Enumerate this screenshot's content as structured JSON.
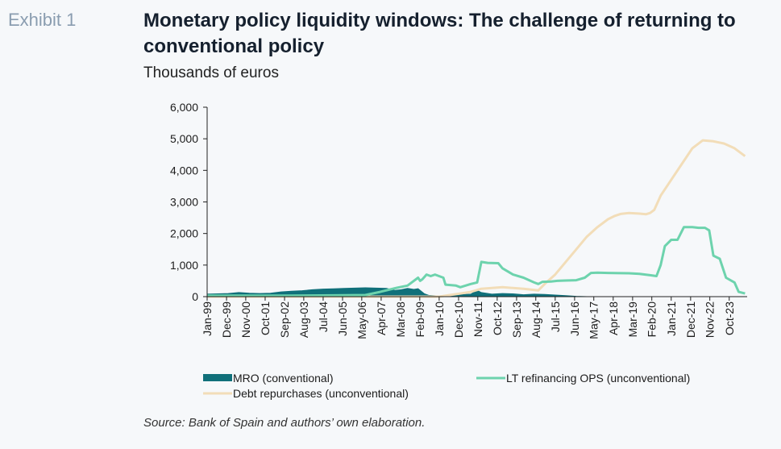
{
  "header": {
    "exhibit": "Exhibit 1",
    "title": "Monetary policy liquidity windows: The challenge of returning to conventional policy",
    "subtitle": "Thousands of euros"
  },
  "source": "Source: Bank of Spain and authors’ own elaboration.",
  "colors": {
    "mro": "#10707a",
    "lt_refinancing": "#6dd3ad",
    "debt_repurchases": "#f2ddb8",
    "axis": "#222222"
  },
  "chart_data": {
    "type": "line",
    "ylim": [
      0,
      6000
    ],
    "xlim": [
      1999.0,
      2024.6
    ],
    "y_ticks": [
      0,
      1000,
      2000,
      3000,
      4000,
      5000,
      6000
    ],
    "y_tick_labels": [
      "0",
      "1,000",
      "2,000",
      "3,000",
      "4,000",
      "5,000",
      "6,000"
    ],
    "x_tick_labels": [
      "Jan-99",
      "Dec-99",
      "Nov-00",
      "Oct-01",
      "Sep-02",
      "Aug-03",
      "Jul-04",
      "Jun-05",
      "May-06",
      "Apr-07",
      "Mar-08",
      "Feb-09",
      "Jan-10",
      "Dec-10",
      "Nov-11",
      "Oct-12",
      "Sep-13",
      "Aug-14",
      "Jul-15",
      "Jun-16",
      "May-17",
      "Apr-18",
      "Mar-19",
      "Feb-20",
      "Jan-21",
      "Dec-21",
      "Nov-22",
      "Oct-23"
    ],
    "x_tick_values": [
      1999.0,
      1999.92,
      2000.83,
      2001.75,
      2002.67,
      2003.58,
      2004.5,
      2005.42,
      2006.33,
      2007.25,
      2008.17,
      2009.08,
      2010.0,
      2010.92,
      2011.83,
      2012.75,
      2013.67,
      2014.58,
      2015.5,
      2016.42,
      2017.33,
      2018.25,
      2019.17,
      2020.08,
      2021.0,
      2021.92,
      2022.83,
      2023.75
    ],
    "series": [
      {
        "name": "MRO (conventional)",
        "style": "area",
        "x": [
          1999.0,
          1999.5,
          2000.0,
          2000.5,
          2001.0,
          2001.5,
          2002.0,
          2002.5,
          2003.0,
          2003.5,
          2004.0,
          2004.5,
          2005.0,
          2005.5,
          2006.0,
          2006.5,
          2007.0,
          2007.5,
          2007.9,
          2008.2,
          2008.5,
          2008.8,
          2009.0,
          2009.3,
          2009.5,
          2010.0,
          2010.5,
          2011.0,
          2011.5,
          2011.8,
          2012.0,
          2012.5,
          2013.0,
          2013.5,
          2014.0,
          2014.5,
          2015.0,
          2015.5,
          2016.0,
          2016.5,
          2017.0
        ],
        "y": [
          80,
          90,
          100,
          130,
          110,
          100,
          110,
          150,
          170,
          190,
          220,
          240,
          250,
          260,
          270,
          280,
          270,
          260,
          200,
          220,
          260,
          230,
          250,
          90,
          40,
          20,
          30,
          60,
          80,
          200,
          130,
          80,
          100,
          90,
          60,
          80,
          70,
          50,
          30,
          10,
          0
        ]
      },
      {
        "name": "LT refinancing OPS (unconventional)",
        "style": "line",
        "x": [
          1999.0,
          2003.0,
          2005.0,
          2006.5,
          2007.2,
          2008.0,
          2008.5,
          2009.0,
          2009.1,
          2009.2,
          2009.4,
          2009.6,
          2009.8,
          2010.2,
          2010.3,
          2010.8,
          2011.0,
          2011.5,
          2011.8,
          2012.0,
          2012.3,
          2012.8,
          2013.0,
          2013.5,
          2014.0,
          2014.5,
          2014.7,
          2014.9,
          2015.3,
          2015.6,
          2016.0,
          2016.5,
          2016.9,
          2017.2,
          2017.5,
          2018.0,
          2019.0,
          2019.5,
          2020.0,
          2020.3,
          2020.5,
          2020.7,
          2021.0,
          2021.3,
          2021.6,
          2022.0,
          2022.3,
          2022.6,
          2022.8,
          2023.0,
          2023.3,
          2023.6,
          2024.0,
          2024.2,
          2024.5
        ],
        "y": [
          30,
          30,
          40,
          50,
          150,
          280,
          350,
          600,
          500,
          550,
          700,
          650,
          700,
          600,
          380,
          350,
          300,
          400,
          450,
          1100,
          1070,
          1060,
          900,
          700,
          600,
          450,
          400,
          470,
          480,
          500,
          510,
          520,
          600,
          750,
          760,
          750,
          740,
          720,
          680,
          650,
          1000,
          1600,
          1800,
          1800,
          2200,
          2200,
          2180,
          2180,
          2100,
          1300,
          1200,
          600,
          450,
          150,
          100
        ]
      },
      {
        "name": "Debt repurchases (unconventional)",
        "style": "line",
        "x": [
          1999.0,
          2009.5,
          2010.0,
          2010.5,
          2011.0,
          2011.5,
          2012.0,
          2013.0,
          2014.0,
          2014.7,
          2015.0,
          2015.5,
          2016.0,
          2016.5,
          2017.0,
          2017.5,
          2018.0,
          2018.3,
          2018.6,
          2019.0,
          2019.5,
          2019.8,
          2020.0,
          2020.2,
          2020.5,
          2021.0,
          2021.5,
          2022.0,
          2022.5,
          2023.0,
          2023.5,
          2024.0,
          2024.5
        ],
        "y": [
          0,
          0,
          0,
          50,
          100,
          150,
          250,
          300,
          250,
          200,
          400,
          700,
          1100,
          1500,
          1900,
          2200,
          2450,
          2550,
          2620,
          2650,
          2630,
          2610,
          2650,
          2750,
          3200,
          3700,
          4200,
          4700,
          4950,
          4920,
          4850,
          4700,
          4450
        ]
      }
    ],
    "legend": [
      {
        "label": "MRO (conventional)",
        "series": 0
      },
      {
        "label": "LT refinancing OPS (unconventional)",
        "series": 1
      },
      {
        "label": "Debt repurchases (unconventional)",
        "series": 2
      }
    ]
  }
}
